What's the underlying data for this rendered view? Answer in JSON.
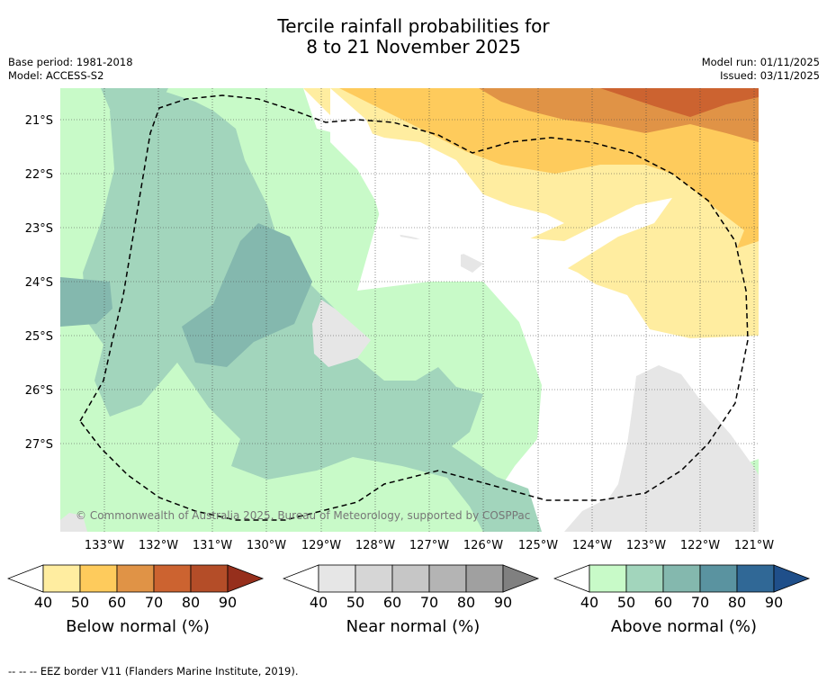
{
  "title_line1": "Tercile rainfall probabilities for",
  "title_line2": "8 to 21 November 2025",
  "base_period": "Base period: 1981-2018",
  "model": "Model: ACCESS-S2",
  "model_run": "Model run: 01/11/2025",
  "issued": "Issued: 03/11/2025",
  "copyright": "© Commonwealth of Australia 2025, Bureau of Meteorology, supported by COSPPac",
  "footnote": "--  --  -- EEZ border V11 (Flanders Marine Institute, 2019).",
  "lat_labels": [
    "21°S",
    "22°S",
    "23°S",
    "24°S",
    "25°S",
    "26°S",
    "27°S"
  ],
  "lon_labels": [
    "133°W",
    "132°W",
    "131°W",
    "130°W",
    "129°W",
    "128°W",
    "127°W",
    "126°W",
    "125°W",
    "124°W",
    "123°W",
    "122°W",
    "121°W"
  ],
  "colorbars": [
    {
      "label": "Below normal (%)",
      "ticks": [
        "40",
        "50",
        "60",
        "70",
        "80",
        "90"
      ],
      "colors": [
        "#ffffff",
        "#ffeda0",
        "#fecb5c",
        "#e09346",
        "#cc6330",
        "#b44d28",
        "#962f1c"
      ]
    },
    {
      "label": "Near normal (%)",
      "ticks": [
        "40",
        "50",
        "60",
        "70",
        "80",
        "90"
      ],
      "colors": [
        "#ffffff",
        "#e6e6e6",
        "#d6d6d6",
        "#c6c6c6",
        "#b4b4b4",
        "#a0a0a0",
        "#808080"
      ]
    },
    {
      "label": "Above normal (%)",
      "ticks": [
        "40",
        "50",
        "60",
        "70",
        "80",
        "90"
      ],
      "colors": [
        "#ffffff",
        "#c8fac8",
        "#a2d5bc",
        "#84b8ae",
        "#5a93a0",
        "#306896",
        "#1f4f8a"
      ]
    }
  ]
}
